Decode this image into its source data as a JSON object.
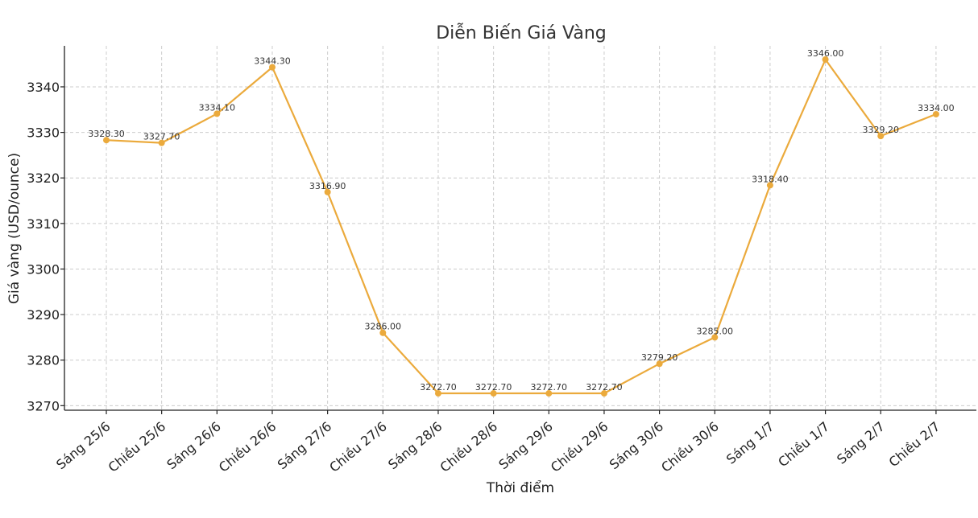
{
  "chart_data": {
    "type": "line",
    "title": "Diễn Biến Giá Vàng",
    "xlabel": "Thời điểm",
    "ylabel": "Giá vàng (USD/ounce)",
    "categories": [
      "Sáng 25/6",
      "Chiều 25/6",
      "Sáng 26/6",
      "Chiều 26/6",
      "Sáng 27/6",
      "Chiều 27/6",
      "Sáng 28/6",
      "Chiều 28/6",
      "Sáng 29/6",
      "Chiều 29/6",
      "Sáng 30/6",
      "Chiều 30/6",
      "Sáng 1/7",
      "Chiều 1/7",
      "Sáng 2/7",
      "Chiều 2/7"
    ],
    "values": [
      3328.3,
      3327.7,
      3334.1,
      3344.3,
      3316.9,
      3286.0,
      3272.7,
      3272.7,
      3272.7,
      3272.7,
      3279.2,
      3285.0,
      3318.4,
      3346.0,
      3329.2,
      3334.0
    ],
    "data_labels": [
      "3328.30",
      "3327.70",
      "3334.10",
      "3344.30",
      "3316.90",
      "3286.00",
      "3272.70",
      "3272.70",
      "3272.70",
      "3272.70",
      "3279.20",
      "3285.00",
      "3318.40",
      "3346.00",
      "3329.20",
      "3334.00"
    ],
    "yticks": [
      "3270",
      "3280",
      "3290",
      "3300",
      "3310",
      "3320",
      "3330",
      "3340"
    ],
    "ylim": [
      3269.0,
      3349.0
    ],
    "grid": true,
    "line_color": "#EBAA3C"
  }
}
